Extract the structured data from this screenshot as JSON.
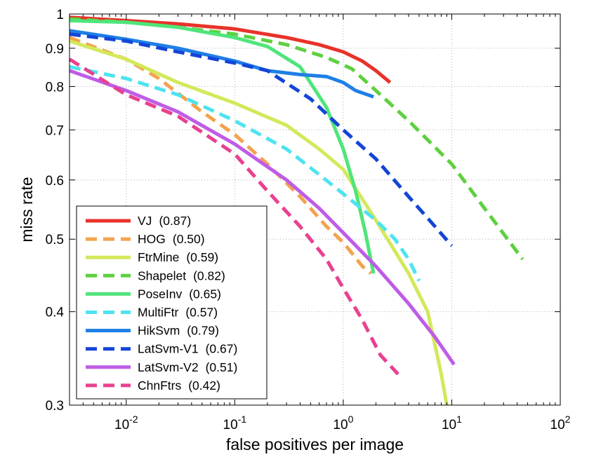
{
  "chart_data": {
    "type": "line",
    "title": "",
    "xlabel": "false positives per image",
    "ylabel": "miss rate",
    "xscale": "log",
    "yscale": "log",
    "xlim": [
      0.003,
      100
    ],
    "ylim": [
      0.3,
      1
    ],
    "grid": true,
    "legend_position": "bottom-left",
    "xticks": [
      {
        "value": 0.01,
        "base": "10",
        "exp": "-2"
      },
      {
        "value": 0.1,
        "base": "10",
        "exp": "-1"
      },
      {
        "value": 1,
        "base": "10",
        "exp": "0"
      },
      {
        "value": 10,
        "base": "10",
        "exp": "1"
      },
      {
        "value": 100,
        "base": "10",
        "exp": "2"
      }
    ],
    "yticks": [
      {
        "value": 0.3,
        "label": "0.3"
      },
      {
        "value": 0.4,
        "label": "0.4"
      },
      {
        "value": 0.5,
        "label": "0.5"
      },
      {
        "value": 0.6,
        "label": "0.6"
      },
      {
        "value": 0.7,
        "label": "0.7"
      },
      {
        "value": 0.8,
        "label": "0.8"
      },
      {
        "value": 0.9,
        "label": "0.9"
      },
      {
        "value": 1,
        "label": "1"
      }
    ],
    "series": [
      {
        "name": "VJ",
        "score": "(0.87)",
        "color": "#e8322a",
        "dashed": false,
        "x": [
          0.003,
          0.01,
          0.03,
          0.1,
          0.3,
          0.6,
          1,
          1.5,
          2,
          2.7
        ],
        "y": [
          0.99,
          0.98,
          0.97,
          0.955,
          0.93,
          0.91,
          0.89,
          0.865,
          0.84,
          0.81
        ]
      },
      {
        "name": "HOG",
        "score": "(0.50)",
        "color": "#f3a34e",
        "dashed": true,
        "x": [
          0.003,
          0.01,
          0.02,
          0.05,
          0.1,
          0.2,
          0.4,
          0.7,
          1,
          1.5,
          1.8
        ],
        "y": [
          0.93,
          0.87,
          0.82,
          0.74,
          0.69,
          0.63,
          0.57,
          0.52,
          0.495,
          0.46,
          0.45
        ]
      },
      {
        "name": "FtrMine",
        "score": "(0.59)",
        "color": "#d4e85b",
        "dashed": false,
        "x": [
          0.003,
          0.01,
          0.03,
          0.1,
          0.3,
          0.6,
          1,
          2,
          4,
          6,
          8,
          9
        ],
        "y": [
          0.92,
          0.87,
          0.81,
          0.76,
          0.71,
          0.66,
          0.62,
          0.53,
          0.45,
          0.4,
          0.33,
          0.3
        ]
      },
      {
        "name": "Shapelet",
        "score": "(0.82)",
        "color": "#5ed03f",
        "dashed": true,
        "x": [
          0.003,
          0.01,
          0.03,
          0.1,
          0.3,
          0.7,
          1.2,
          2,
          4,
          10,
          20,
          45
        ],
        "y": [
          0.985,
          0.975,
          0.96,
          0.94,
          0.91,
          0.875,
          0.845,
          0.79,
          0.72,
          0.63,
          0.55,
          0.47
        ]
      },
      {
        "name": "PoseInv",
        "score": "(0.65)",
        "color": "#4fe57a",
        "dashed": false,
        "x": [
          0.003,
          0.01,
          0.03,
          0.1,
          0.2,
          0.4,
          0.7,
          1,
          1.3,
          1.6,
          1.9
        ],
        "y": [
          0.98,
          0.975,
          0.96,
          0.93,
          0.905,
          0.85,
          0.75,
          0.66,
          0.58,
          0.51,
          0.45
        ]
      },
      {
        "name": "MultiFtr",
        "score": "(0.57)",
        "color": "#4ee3f0",
        "dashed": true,
        "x": [
          0.003,
          0.01,
          0.03,
          0.1,
          0.3,
          0.6,
          1,
          2,
          3,
          4,
          5
        ],
        "y": [
          0.85,
          0.82,
          0.78,
          0.72,
          0.66,
          0.61,
          0.575,
          0.53,
          0.5,
          0.47,
          0.44
        ]
      },
      {
        "name": "HikSvm",
        "score": "(0.79)",
        "color": "#1f7fe6",
        "dashed": false,
        "x": [
          0.003,
          0.01,
          0.03,
          0.1,
          0.2,
          0.4,
          0.7,
          1,
          1.3,
          1.9
        ],
        "y": [
          0.95,
          0.925,
          0.9,
          0.865,
          0.84,
          0.83,
          0.825,
          0.81,
          0.79,
          0.775
        ]
      },
      {
        "name": "LatSvm-V1",
        "score": "(0.67)",
        "color": "#1445d8",
        "dashed": true,
        "x": [
          0.003,
          0.01,
          0.03,
          0.1,
          0.2,
          0.5,
          1,
          2,
          4,
          7,
          10
        ],
        "y": [
          0.94,
          0.92,
          0.89,
          0.86,
          0.84,
          0.77,
          0.7,
          0.64,
          0.57,
          0.52,
          0.49
        ]
      },
      {
        "name": "LatSvm-V2",
        "score": "(0.51)",
        "color": "#bf5ce6",
        "dashed": false,
        "x": [
          0.003,
          0.01,
          0.03,
          0.1,
          0.3,
          0.6,
          1,
          2,
          4,
          7,
          10.5
        ],
        "y": [
          0.84,
          0.79,
          0.74,
          0.67,
          0.6,
          0.55,
          0.51,
          0.46,
          0.41,
          0.37,
          0.34
        ]
      },
      {
        "name": "ChnFtrs",
        "score": "(0.42)",
        "color": "#e8418f",
        "dashed": true,
        "x": [
          0.003,
          0.01,
          0.03,
          0.1,
          0.2,
          0.4,
          0.7,
          1,
          1.5,
          2.2,
          3.2
        ],
        "y": [
          0.87,
          0.78,
          0.73,
          0.65,
          0.58,
          0.52,
          0.47,
          0.43,
          0.39,
          0.35,
          0.33
        ]
      }
    ]
  }
}
